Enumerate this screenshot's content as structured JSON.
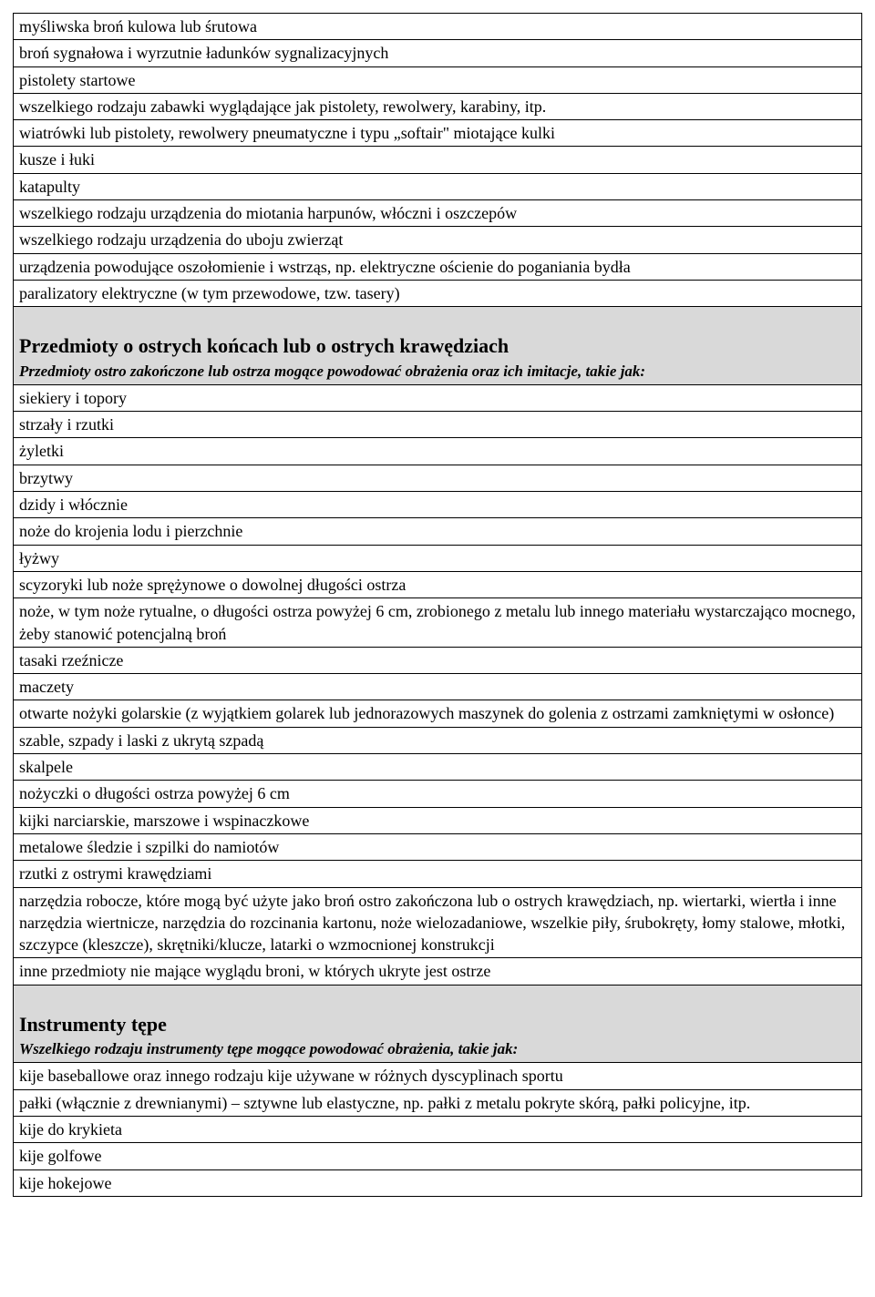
{
  "section1_rows": [
    "myśliwska broń kulowa lub śrutowa",
    "broń sygnałowa i wyrzutnie ładunków sygnalizacyjnych",
    "pistolety startowe",
    "wszelkiego rodzaju zabawki wyglądające jak pistolety, rewolwery, karabiny, itp.",
    "wiatrówki lub pistolety, rewolwery pneumatyczne i typu „softair\" miotające kulki",
    "kusze i łuki",
    "katapulty",
    "wszelkiego rodzaju urządzenia do miotania harpunów, włóczni i oszczepów",
    "wszelkiego rodzaju urządzenia do uboju zwierząt",
    "urządzenia powodujące oszołomienie i wstrząs, np. elektryczne ościenie do poganiania bydła",
    "paralizatory elektryczne (w tym przewodowe, tzw. tasery)"
  ],
  "section2_header_title": "Przedmioty o ostrych końcach lub o ostrych krawędziach",
  "section2_header_subtitle": "Przedmioty ostro zakończone lub ostrza mogące powodować obrażenia oraz ich imitacje, takie jak:",
  "section2_rows": [
    "siekiery i topory",
    "strzały i rzutki",
    "żyletki",
    "brzytwy",
    "dzidy i włócznie",
    "noże do krojenia lodu i pierzchnie",
    "łyżwy",
    "scyzoryki lub noże sprężynowe o dowolnej długości ostrza",
    "noże, w tym noże rytualne, o długości ostrza powyżej 6 cm, zrobionego z metalu lub innego materiału wystarczająco mocnego, żeby stanowić potencjalną broń",
    "tasaki rzeźnicze",
    "maczety",
    "otwarte nożyki golarskie (z wyjątkiem golarek lub jednorazowych maszynek do golenia z ostrzami zamkniętymi w osłonce)",
    "szable, szpady i laski z ukrytą szpadą",
    "skalpele",
    "nożyczki o długości ostrza powyżej 6 cm",
    "kijki narciarskie, marszowe i wspinaczkowe",
    "metalowe śledzie i szpilki do namiotów",
    "rzutki z ostrymi krawędziami",
    "narzędzia robocze, które mogą być użyte jako broń ostro zakończona lub o ostrych krawędziach, np. wiertarki, wiertła i inne narzędzia wiertnicze, narzędzia do rozcinania kartonu, noże wielozadaniowe, wszelkie piły, śrubokręty, łomy stalowe, młotki, szczypce (kleszcze), skrętniki/klucze, latarki o wzmocnionej konstrukcji",
    "inne przedmioty nie mające wyglądu broni, w których ukryte jest ostrze"
  ],
  "section3_header_title": "Instrumenty tępe",
  "section3_header_subtitle": "Wszelkiego rodzaju instrumenty tępe mogące powodować obrażenia, takie jak:",
  "section3_rows": [
    "kije baseballowe oraz innego rodzaju kije używane w różnych dyscyplinach sportu",
    "pałki (włącznie z drewnianymi) – sztywne lub elastyczne, np. pałki z metalu pokryte skórą, pałki policyjne, itp.",
    "kije do krykieta",
    "kije golfowe",
    "kije hokejowe"
  ]
}
